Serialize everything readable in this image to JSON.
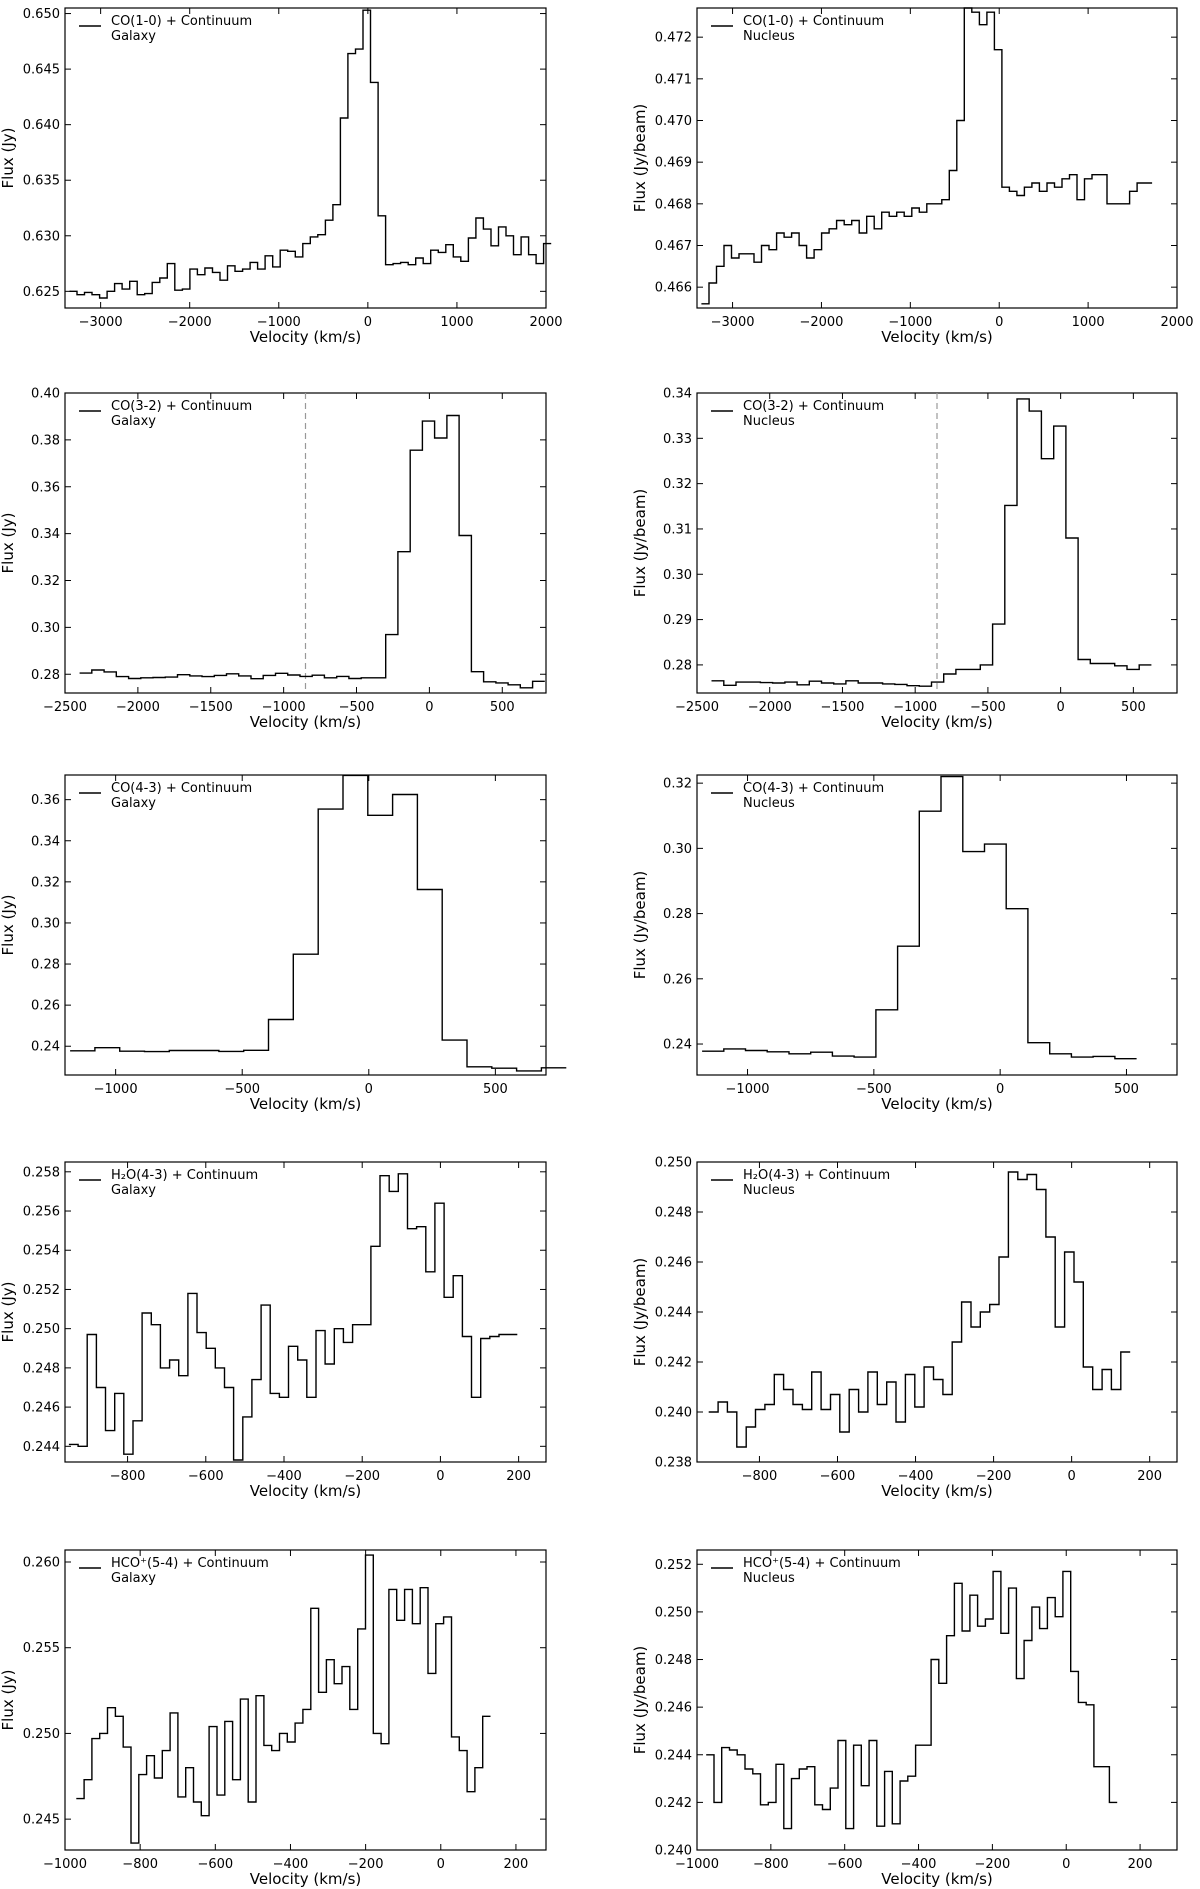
{
  "chart_data": [
    {
      "type": "line",
      "title": "",
      "legend": {
        "line1": "CO(1-0) + Continuum",
        "line2": "Galaxy",
        "position": "top-left"
      },
      "xlabel": "Velocity (km/s)",
      "ylabel": "Flux (Jy)",
      "xlim": [
        -3400,
        2000
      ],
      "ylim": [
        0.6235,
        0.6505
      ],
      "xticks": [
        -3000,
        -2000,
        -1000,
        0,
        1000,
        2000
      ],
      "xtick_labels": [
        "−3000",
        "−2000",
        "−1000",
        "0",
        "1000",
        "2000"
      ],
      "yticks": [
        0.625,
        0.63,
        0.635,
        0.64,
        0.645,
        0.65
      ],
      "ytick_labels": [
        "0.625",
        "0.630",
        "0.635",
        "0.640",
        "0.645",
        "0.650"
      ],
      "x_start": -3350,
      "x_step": 84.5,
      "y": [
        0.625,
        0.6247,
        0.6249,
        0.6247,
        0.6244,
        0.625,
        0.6257,
        0.6252,
        0.6259,
        0.6247,
        0.6248,
        0.6258,
        0.6262,
        0.6275,
        0.6251,
        0.6252,
        0.627,
        0.6265,
        0.6271,
        0.6267,
        0.626,
        0.6273,
        0.6268,
        0.627,
        0.6276,
        0.627,
        0.6282,
        0.6272,
        0.6287,
        0.6286,
        0.6281,
        0.6293,
        0.6299,
        0.6301,
        0.6314,
        0.6328,
        0.6406,
        0.6464,
        0.6468,
        0.6503,
        0.6438,
        0.6318,
        0.6274,
        0.6275,
        0.6276,
        0.6274,
        0.628,
        0.6275,
        0.6287,
        0.6285,
        0.6292,
        0.6281,
        0.6277,
        0.6298,
        0.6316,
        0.6306,
        0.6291,
        0.6308,
        0.63,
        0.6283,
        0.6299,
        0.6283,
        0.6275,
        0.6293
      ]
    },
    {
      "type": "line",
      "title": "",
      "legend": {
        "line1": "CO(1-0) + Continuum",
        "line2": "Nucleus",
        "position": "top-left"
      },
      "xlabel": "Velocity (km/s)",
      "ylabel": "Flux (Jy/beam)",
      "xlim": [
        -3400,
        2000
      ],
      "ylim": [
        0.4655,
        0.4727
      ],
      "xticks": [
        -3000,
        -2000,
        -1000,
        0,
        1000,
        2000
      ],
      "xtick_labels": [
        "−3000",
        "−2000",
        "−1000",
        "0",
        "1000",
        "2000"
      ],
      "yticks": [
        0.466,
        0.467,
        0.468,
        0.469,
        0.47,
        0.471,
        0.472
      ],
      "ytick_labels": [
        "0.466",
        "0.467",
        "0.468",
        "0.469",
        "0.470",
        "0.471",
        "0.472"
      ],
      "x_start": -3350,
      "x_step": 84.5,
      "y": [
        0.4656,
        0.4661,
        0.4665,
        0.467,
        0.4667,
        0.4668,
        0.4668,
        0.4666,
        0.467,
        0.4669,
        0.4673,
        0.4672,
        0.4673,
        0.467,
        0.4667,
        0.4669,
        0.4673,
        0.4674,
        0.4676,
        0.4675,
        0.4676,
        0.4673,
        0.4677,
        0.4674,
        0.4678,
        0.4677,
        0.4678,
        0.4677,
        0.4679,
        0.4678,
        0.468,
        0.468,
        0.4681,
        0.4688,
        0.47,
        0.4727,
        0.4726,
        0.4723,
        0.4726,
        0.4717,
        0.4684,
        0.4683,
        0.4682,
        0.4684,
        0.4685,
        0.4683,
        0.4685,
        0.4684,
        0.4686,
        0.4687,
        0.4681,
        0.4686,
        0.4687,
        0.4687,
        0.468,
        0.468,
        0.468,
        0.4683,
        0.4685,
        0.4685
      ]
    },
    {
      "type": "line",
      "title": "",
      "legend": {
        "line1": "CO(3-2) + Continuum",
        "line2": "Galaxy",
        "position": "top-left"
      },
      "xlabel": "Velocity (km/s)",
      "ylabel": "Flux (Jy)",
      "xlim": [
        -2500,
        800
      ],
      "ylim": [
        0.272,
        0.4
      ],
      "xticks": [
        -2500,
        -2000,
        -1500,
        -1000,
        -500,
        0,
        500
      ],
      "xtick_labels": [
        "−2500",
        "−2000",
        "−1500",
        "−1000",
        "−500",
        "0",
        "500"
      ],
      "yticks": [
        0.28,
        0.3,
        0.32,
        0.34,
        0.36,
        0.38,
        0.4
      ],
      "ytick_labels": [
        "0.28",
        "0.30",
        "0.32",
        "0.34",
        "0.36",
        "0.38",
        "0.40"
      ],
      "reference_line_x": -850,
      "x_start": -2400,
      "x_step": 84,
      "y": [
        0.2805,
        0.2818,
        0.281,
        0.279,
        0.2782,
        0.2785,
        0.2786,
        0.2788,
        0.2798,
        0.2793,
        0.279,
        0.2795,
        0.2802,
        0.2793,
        0.2781,
        0.2795,
        0.2804,
        0.2797,
        0.2791,
        0.2796,
        0.2785,
        0.2791,
        0.2782,
        0.2785,
        0.2785,
        0.2969,
        0.3323,
        0.3756,
        0.388,
        0.3808,
        0.3904,
        0.3392,
        0.2811,
        0.2768,
        0.2763,
        0.2755,
        0.2742,
        0.277
      ]
    },
    {
      "type": "line",
      "title": "",
      "legend": {
        "line1": "CO(3-2) + Continuum",
        "line2": "Nucleus",
        "position": "top-left"
      },
      "xlabel": "Velocity (km/s)",
      "ylabel": "Flux (Jy/beam)",
      "xlim": [
        -2500,
        800
      ],
      "ylim": [
        0.2738,
        0.34
      ],
      "xticks": [
        -2500,
        -2000,
        -1500,
        -1000,
        -500,
        0,
        500
      ],
      "xtick_labels": [
        "−2500",
        "−2000",
        "−1500",
        "−1000",
        "−500",
        "0",
        "500"
      ],
      "yticks": [
        0.28,
        0.29,
        0.3,
        0.31,
        0.32,
        0.33,
        0.34
      ],
      "ytick_labels": [
        "0.28",
        "0.29",
        "0.30",
        "0.31",
        "0.32",
        "0.33",
        "0.34"
      ],
      "reference_line_x": -850,
      "x_start": -2400,
      "x_step": 84,
      "y": [
        0.2765,
        0.2755,
        0.2762,
        0.2762,
        0.2761,
        0.276,
        0.2762,
        0.2756,
        0.2764,
        0.276,
        0.2758,
        0.2765,
        0.276,
        0.276,
        0.2758,
        0.2757,
        0.2754,
        0.2753,
        0.2762,
        0.278,
        0.279,
        0.279,
        0.28,
        0.289,
        0.3152,
        0.3387,
        0.336,
        0.3255,
        0.3327,
        0.308,
        0.2812,
        0.2803,
        0.2803,
        0.2798,
        0.279,
        0.28
      ]
    },
    {
      "type": "line",
      "title": "",
      "legend": {
        "line1": "CO(4-3) + Continuum",
        "line2": "Galaxy",
        "position": "top-left"
      },
      "xlabel": "Velocity (km/s)",
      "ylabel": "Flux (Jy)",
      "xlim": [
        -1200,
        700
      ],
      "ylim": [
        0.226,
        0.372
      ],
      "xticks": [
        -1000,
        -500,
        0,
        500
      ],
      "xtick_labels": [
        "−1000",
        "−500",
        "0",
        "500"
      ],
      "yticks": [
        0.24,
        0.26,
        0.28,
        0.3,
        0.32,
        0.34,
        0.36
      ],
      "ytick_labels": [
        "0.24",
        "0.26",
        "0.28",
        "0.30",
        "0.32",
        "0.34",
        "0.36"
      ],
      "x_start": -1180,
      "x_step": 98,
      "y": [
        0.2378,
        0.2393,
        0.2376,
        0.2374,
        0.2379,
        0.2379,
        0.2375,
        0.238,
        0.253,
        0.2848,
        0.3554,
        0.3718,
        0.3524,
        0.3625,
        0.3163,
        0.243,
        0.23,
        0.2293,
        0.228,
        0.2295
      ]
    },
    {
      "type": "line",
      "title": "",
      "legend": {
        "line1": "CO(4-3) + Continuum",
        "line2": "Nucleus",
        "position": "top-left"
      },
      "xlabel": "Velocity (km/s)",
      "ylabel": "Flux (Jy/beam)",
      "xlim": [
        -1200,
        700
      ],
      "ylim": [
        0.2305,
        0.3225
      ],
      "xticks": [
        -1000,
        -500,
        0,
        500
      ],
      "xtick_labels": [
        "−1000",
        "−500",
        "0",
        "500"
      ],
      "yticks": [
        0.24,
        0.26,
        0.28,
        0.3,
        0.32
      ],
      "ytick_labels": [
        "0.24",
        "0.26",
        "0.28",
        "0.30",
        "0.32"
      ],
      "x_start": -1180,
      "x_step": 86,
      "y": [
        0.2378,
        0.2385,
        0.238,
        0.2376,
        0.237,
        0.2375,
        0.2363,
        0.236,
        0.2505,
        0.27,
        0.3114,
        0.322,
        0.299,
        0.3013,
        0.2815,
        0.2404,
        0.237,
        0.236,
        0.2362,
        0.2355
      ]
    },
    {
      "type": "line",
      "title": "",
      "legend": {
        "line1": "H₂O(4-3) + Continuum",
        "line2": "Galaxy",
        "position": "top-left"
      },
      "xlabel": "Velocity (km/s)",
      "ylabel": "Flux (Jy)",
      "xlim": [
        -960,
        270
      ],
      "ylim": [
        0.2432,
        0.2585
      ],
      "xticks": [
        -800,
        -600,
        -400,
        -200,
        0,
        200
      ],
      "xtick_labels": [
        "−800",
        "−600",
        "−400",
        "−200",
        "0",
        "200"
      ],
      "yticks": [
        0.244,
        0.246,
        0.248,
        0.25,
        0.252,
        0.254,
        0.256,
        0.258
      ],
      "ytick_labels": [
        "0.244",
        "0.246",
        "0.248",
        "0.250",
        "0.252",
        "0.254",
        "0.256",
        "0.258"
      ],
      "x_start": -950,
      "x_step": 23.4,
      "y": [
        0.2441,
        0.244,
        0.2497,
        0.247,
        0.2448,
        0.2467,
        0.2436,
        0.2453,
        0.2508,
        0.2502,
        0.248,
        0.2484,
        0.2476,
        0.2518,
        0.2498,
        0.249,
        0.248,
        0.247,
        0.2433,
        0.2455,
        0.2474,
        0.2512,
        0.2467,
        0.2465,
        0.2491,
        0.2484,
        0.2465,
        0.2499,
        0.2482,
        0.25,
        0.2493,
        0.2502,
        0.2502,
        0.2542,
        0.2578,
        0.257,
        0.2579,
        0.2551,
        0.2552,
        0.2529,
        0.2564,
        0.2516,
        0.2527,
        0.2496,
        0.2465,
        0.2495,
        0.2496,
        0.2497,
        0.2497
      ]
    },
    {
      "type": "line",
      "title": "",
      "legend": {
        "line1": "H₂O(4-3) + Continuum",
        "line2": "Nucleus",
        "position": "top-left"
      },
      "xlabel": "Velocity (km/s)",
      "ylabel": "Flux (Jy/beam)",
      "xlim": [
        -960,
        270
      ],
      "ylim": [
        0.238,
        0.25
      ],
      "xticks": [
        -800,
        -600,
        -400,
        -200,
        0,
        200
      ],
      "xtick_labels": [
        "−800",
        "−600",
        "−400",
        "−200",
        "0",
        "200"
      ],
      "yticks": [
        0.238,
        0.24,
        0.242,
        0.244,
        0.246,
        0.248,
        0.25
      ],
      "ytick_labels": [
        "0.238",
        "0.240",
        "0.242",
        "0.244",
        "0.246",
        "0.248",
        "0.250"
      ],
      "x_start": -930,
      "x_step": 24,
      "y": [
        0.24,
        0.2404,
        0.24,
        0.2386,
        0.2394,
        0.2401,
        0.2403,
        0.2415,
        0.2409,
        0.2403,
        0.2401,
        0.2416,
        0.2401,
        0.2407,
        0.2392,
        0.2409,
        0.24,
        0.2416,
        0.2403,
        0.2412,
        0.2396,
        0.2415,
        0.2402,
        0.2418,
        0.2413,
        0.2407,
        0.2428,
        0.2444,
        0.2434,
        0.244,
        0.2443,
        0.2462,
        0.2496,
        0.2493,
        0.2495,
        0.2489,
        0.247,
        0.2434,
        0.2464,
        0.2452,
        0.2418,
        0.2409,
        0.2417,
        0.2409,
        0.2424
      ]
    },
    {
      "type": "line",
      "title": "",
      "legend": {
        "line1": "HCO⁺(5-4) + Continuum",
        "line2": "Galaxy",
        "position": "top-left"
      },
      "xlabel": "Velocity (km/s)",
      "ylabel": "Flux (Jy)",
      "xlim": [
        -1000,
        280
      ],
      "ylim": [
        0.2432,
        0.2607
      ],
      "xticks": [
        -1000,
        -800,
        -600,
        -400,
        -200,
        0,
        200
      ],
      "xtick_labels": [
        "−1000",
        "−800",
        "−600",
        "−400",
        "−200",
        "0",
        "200"
      ],
      "yticks": [
        0.245,
        0.25,
        0.255,
        0.26
      ],
      "ytick_labels": [
        "0.245",
        "0.250",
        "0.255",
        "0.260"
      ],
      "x_start": -970,
      "x_step": 20.8,
      "y": [
        0.2462,
        0.2473,
        0.2497,
        0.25,
        0.2515,
        0.251,
        0.2492,
        0.2436,
        0.2476,
        0.2487,
        0.2474,
        0.249,
        0.2512,
        0.2463,
        0.248,
        0.246,
        0.2452,
        0.2504,
        0.2464,
        0.2507,
        0.2473,
        0.252,
        0.246,
        0.2522,
        0.2493,
        0.249,
        0.25,
        0.2495,
        0.2506,
        0.2514,
        0.2573,
        0.2524,
        0.2543,
        0.2529,
        0.2539,
        0.2514,
        0.2561,
        0.2604,
        0.25,
        0.2494,
        0.2584,
        0.2566,
        0.2584,
        0.2564,
        0.2585,
        0.2535,
        0.2564,
        0.2568,
        0.2498,
        0.249,
        0.2466,
        0.248,
        0.251
      ]
    },
    {
      "type": "line",
      "title": "",
      "legend": {
        "line1": "HCO⁺(5-4) + Continuum",
        "line2": "Nucleus",
        "position": "top-left"
      },
      "xlabel": "Velocity (km/s)",
      "ylabel": "Flux (Jy/beam)",
      "xlim": [
        -1000,
        300
      ],
      "ylim": [
        0.24,
        0.2526
      ],
      "xticks": [
        -1000,
        -800,
        -600,
        -400,
        -200,
        0,
        200
      ],
      "xtick_labels": [
        "−1000",
        "−800",
        "−600",
        "−400",
        "−200",
        "0",
        "200"
      ],
      "yticks": [
        0.24,
        0.242,
        0.244,
        0.246,
        0.248,
        0.25,
        0.252
      ],
      "ytick_labels": [
        "0.240",
        "0.242",
        "0.244",
        "0.246",
        "0.248",
        "0.250",
        "0.252"
      ],
      "x_start": -975,
      "x_step": 21,
      "y": [
        0.244,
        0.242,
        0.2443,
        0.2442,
        0.244,
        0.2434,
        0.2432,
        0.2419,
        0.242,
        0.2436,
        0.2409,
        0.243,
        0.2434,
        0.2435,
        0.2419,
        0.2417,
        0.2426,
        0.2446,
        0.2409,
        0.2444,
        0.2427,
        0.2446,
        0.241,
        0.2433,
        0.2411,
        0.2429,
        0.2431,
        0.2444,
        0.2444,
        0.248,
        0.247,
        0.249,
        0.2512,
        0.2492,
        0.2507,
        0.2494,
        0.2497,
        0.2517,
        0.2491,
        0.251,
        0.2472,
        0.2488,
        0.2502,
        0.2493,
        0.2506,
        0.2498,
        0.2517,
        0.2475,
        0.2462,
        0.2461,
        0.2435,
        0.2435,
        0.242
      ]
    }
  ]
}
